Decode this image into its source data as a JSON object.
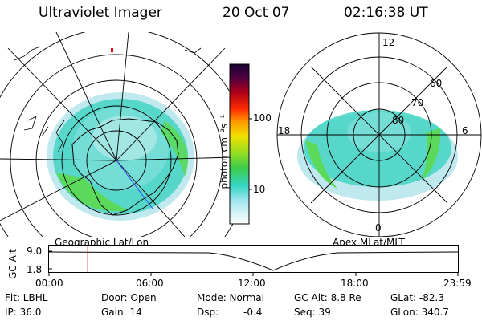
{
  "header": {
    "title": "Ultraviolet Imager",
    "date": "20 Oct 07",
    "time": "02:16:38 UT"
  },
  "colorbar": {
    "unit_label": "photon cm⁻²s⁻¹",
    "ticks": [
      "100",
      "10"
    ]
  },
  "left_panel": {
    "caption": "Geographic Lat/Lon"
  },
  "right_panel": {
    "caption": "Apex MLat/MLT",
    "lat_labels": [
      "60",
      "70",
      "80"
    ],
    "mlt_labels": [
      "12",
      "18",
      "6",
      "0"
    ]
  },
  "timeline": {
    "ylabel": "GC Alt",
    "yticks": [
      "9.0",
      "1.8"
    ],
    "xticks": [
      "00:00",
      "06:00",
      "12:00",
      "18:00",
      "23:59"
    ],
    "marker_time_hours": 2.277
  },
  "info": {
    "filter": "Flt: LBHL",
    "door": "Door: Open",
    "mode": "Mode: Normal",
    "gc_alt": "GC Alt: 8.8 Re",
    "glat": "GLat: -82.3",
    "ip": "IP: 36.0",
    "gain": "Gain: 14",
    "dsp_label": "Dsp:",
    "dsp_value": "-0.4",
    "seq": "Seq: 39",
    "glon": "GLon: 340.7"
  },
  "colors": {
    "marker": "#e00000",
    "aurora_green": "#5bd95b",
    "aurora_cyan": "#40d6c8",
    "aurora_light": "#bfe9ee"
  }
}
